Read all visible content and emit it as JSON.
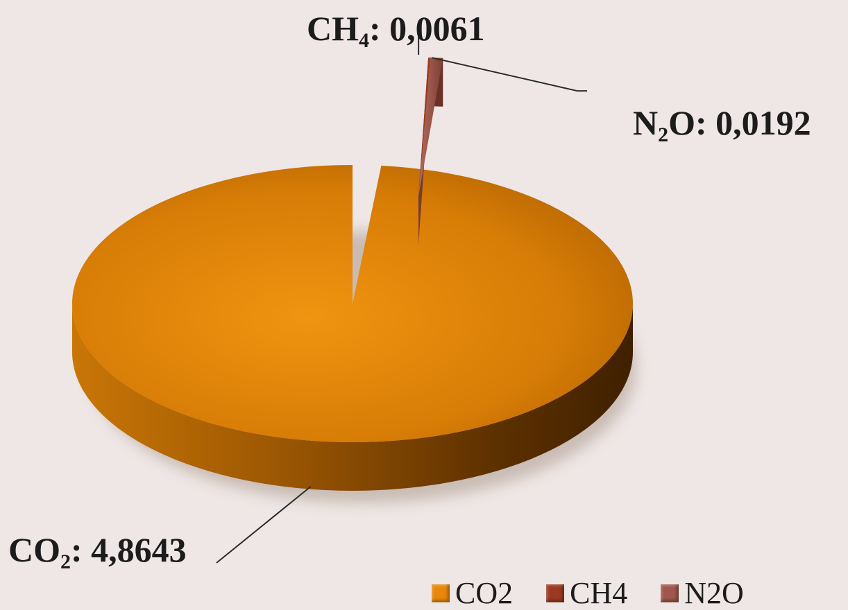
{
  "chart_data": {
    "type": "pie",
    "categories": [
      "CO2",
      "CH4",
      "N2O"
    ],
    "values": [
      4.8643,
      0.0061,
      0.0192
    ],
    "colors": [
      "#e9870a",
      "#9b3a20",
      "#a0574e"
    ],
    "labels": {
      "co2": {
        "base": "CO",
        "sub": "2",
        "rest": ": 4,8643"
      },
      "ch4": {
        "base": "CH",
        "sub": "4",
        "rest": ": 0,0061"
      },
      "n2o": {
        "base": "N",
        "sub": "2",
        "rest": "O: 0,0192"
      }
    },
    "legend": {
      "placement": "bottom-right",
      "entries": [
        "CO2",
        "CH4",
        "N2O"
      ]
    },
    "style": "3d-exploded"
  }
}
